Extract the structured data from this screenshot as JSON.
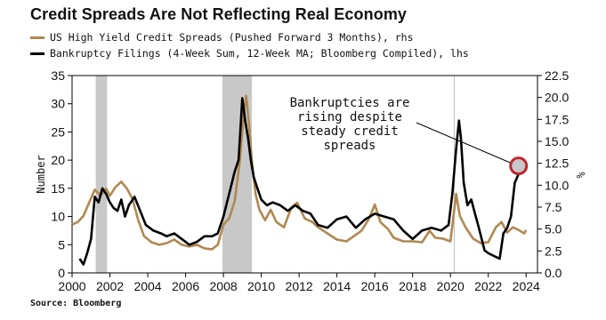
{
  "chart_data": {
    "type": "line",
    "title": "Credit Spreads Are Not Reflecting Real Economy",
    "source": "Source: Bloomberg",
    "xlim": [
      2000,
      2024.6
    ],
    "x_ticks": [
      2000,
      2002,
      2004,
      2006,
      2008,
      2010,
      2012,
      2014,
      2016,
      2018,
      2020,
      2022,
      2024
    ],
    "y_left": {
      "label": "Number",
      "lim": [
        0,
        35
      ],
      "ticks": [
        0,
        5,
        10,
        15,
        20,
        25,
        30,
        35
      ]
    },
    "y_right": {
      "label": "%",
      "lim": [
        0,
        22.5
      ],
      "ticks": [
        "0.0",
        "2.5",
        "5.0",
        "7.5",
        "10.0",
        "12.5",
        "15.0",
        "17.5",
        "20.0",
        "22.5"
      ]
    },
    "grid": false,
    "recessions": [
      [
        2001.25,
        2001.85
      ],
      [
        2007.95,
        2009.5
      ]
    ],
    "vline": 2020.2,
    "annotation": {
      "lines": [
        "Bankruptcies are",
        "rising despite",
        "steady credit",
        "spreads"
      ],
      "point": [
        2023.6,
        12.2
      ]
    },
    "series": [
      {
        "name": "US High Yield Credit Spreads (Pushed Forward 3 Months), rhs",
        "axis": "right",
        "color": "#b08850",
        "x": [
          2000.0,
          2000.3,
          2000.6,
          2000.9,
          2001.2,
          2001.5,
          2001.8,
          2002.0,
          2002.3,
          2002.6,
          2002.9,
          2003.2,
          2003.5,
          2003.8,
          2004.2,
          2004.6,
          2005.0,
          2005.4,
          2005.8,
          2006.2,
          2006.6,
          2007.0,
          2007.4,
          2007.7,
          2008.0,
          2008.3,
          2008.6,
          2008.85,
          2009.05,
          2009.2,
          2009.35,
          2009.5,
          2009.7,
          2009.9,
          2010.2,
          2010.5,
          2010.8,
          2011.2,
          2011.6,
          2011.9,
          2012.3,
          2012.7,
          2013.0,
          2013.5,
          2014.0,
          2014.5,
          2014.9,
          2015.3,
          2015.7,
          2016.0,
          2016.3,
          2016.7,
          2017.0,
          2017.5,
          2018.0,
          2018.5,
          2018.9,
          2019.2,
          2019.6,
          2020.0,
          2020.3,
          2020.5,
          2020.8,
          2021.2,
          2021.6,
          2022.0,
          2022.4,
          2022.7,
          2023.0,
          2023.3,
          2023.6,
          2023.9,
          2024.0
        ],
        "values": [
          5.5,
          5.8,
          6.5,
          8.0,
          9.5,
          8.8,
          9.6,
          8.8,
          9.8,
          10.4,
          9.6,
          8.4,
          6.0,
          4.2,
          3.5,
          3.2,
          3.4,
          3.8,
          3.2,
          3.0,
          3.2,
          2.8,
          2.7,
          3.2,
          5.5,
          6.2,
          8.2,
          12.5,
          17.5,
          20.2,
          17.0,
          12.8,
          9.0,
          7.2,
          6.0,
          7.2,
          5.8,
          5.2,
          7.5,
          8.0,
          6.2,
          5.8,
          5.2,
          4.5,
          3.8,
          3.6,
          4.2,
          4.8,
          6.2,
          7.8,
          5.8,
          5.0,
          4.0,
          3.6,
          3.6,
          3.5,
          4.8,
          4.0,
          3.9,
          3.6,
          9.0,
          6.5,
          5.2,
          3.9,
          3.4,
          3.5,
          5.2,
          5.8,
          4.6,
          5.2,
          4.9,
          4.5,
          4.9
        ]
      },
      {
        "name": "Bankruptcy Filings (4-Week Sum, 12-Week MA; Bloomberg Compiled), lhs",
        "axis": "left",
        "color": "#000000",
        "x": [
          2000.4,
          2000.6,
          2000.8,
          2001.0,
          2001.2,
          2001.4,
          2001.6,
          2001.8,
          2002.0,
          2002.2,
          2002.4,
          2002.6,
          2002.8,
          2003.0,
          2003.3,
          2003.6,
          2003.9,
          2004.3,
          2004.7,
          2005.0,
          2005.4,
          2005.8,
          2006.2,
          2006.6,
          2007.0,
          2007.4,
          2007.7,
          2008.0,
          2008.3,
          2008.6,
          2008.8,
          2009.0,
          2009.15,
          2009.3,
          2009.45,
          2009.6,
          2009.8,
          2010.0,
          2010.3,
          2010.6,
          2011.0,
          2011.4,
          2011.8,
          2012.2,
          2012.6,
          2013.0,
          2013.5,
          2014.0,
          2014.5,
          2015.0,
          2015.5,
          2016.0,
          2016.5,
          2017.0,
          2017.5,
          2018.0,
          2018.5,
          2019.0,
          2019.5,
          2019.9,
          2020.1,
          2020.3,
          2020.45,
          2020.55,
          2020.7,
          2020.9,
          2021.1,
          2021.3,
          2021.5,
          2021.8,
          2022.0,
          2022.3,
          2022.6,
          2022.8,
          2023.0,
          2023.2,
          2023.4,
          2023.6,
          2023.8
        ],
        "values": [
          2.5,
          1.5,
          3.5,
          6.0,
          13.5,
          12.5,
          15.0,
          14.0,
          12.5,
          11.5,
          11.0,
          13.0,
          10.0,
          12.0,
          13.5,
          11.0,
          8.5,
          7.5,
          7.0,
          6.5,
          7.0,
          6.0,
          5.0,
          5.5,
          6.5,
          6.5,
          7.0,
          10.0,
          14.0,
          18.0,
          20.0,
          31.0,
          27.0,
          24.0,
          20.0,
          17.0,
          15.0,
          13.0,
          12.0,
          12.5,
          12.0,
          11.0,
          12.0,
          11.0,
          10.5,
          8.5,
          8.0,
          9.5,
          10.0,
          8.0,
          9.5,
          10.5,
          10.0,
          9.5,
          7.5,
          6.0,
          7.5,
          8.0,
          7.5,
          8.5,
          14.0,
          22.0,
          27.0,
          24.0,
          16.0,
          12.0,
          13.0,
          10.5,
          8.0,
          4.0,
          3.5,
          3.0,
          2.5,
          7.0,
          8.0,
          10.0,
          16.0,
          17.5,
          18.0
        ]
      }
    ]
  }
}
